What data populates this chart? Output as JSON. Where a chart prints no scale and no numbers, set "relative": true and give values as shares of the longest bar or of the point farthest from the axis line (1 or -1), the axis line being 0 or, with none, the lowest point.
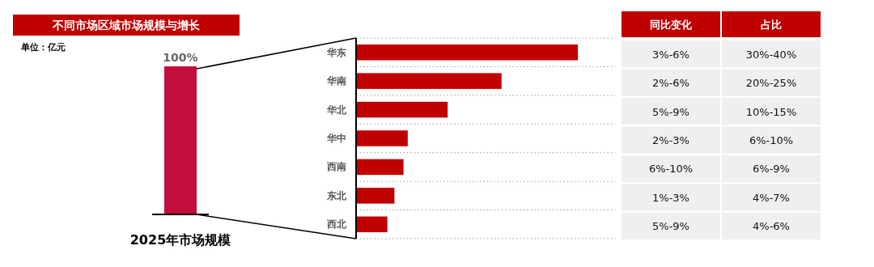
{
  "chart_data": [
    {
      "type": "bar",
      "title": "不同市场区域市场规模与增长",
      "annotations": [
        "单位：亿元"
      ],
      "categories": [
        "2025年市场规模"
      ],
      "values": [
        100
      ],
      "value_labels": [
        "100%"
      ],
      "color": "#c20e3d"
    },
    {
      "type": "bar",
      "orientation": "horizontal",
      "relative": true,
      "grid": "y",
      "categories": [
        "华东",
        "华南",
        "华北",
        "华中",
        "西南",
        "东北",
        "西北"
      ],
      "values": [
        1,
        0.656,
        0.413,
        0.233,
        0.214,
        0.173,
        0.141
      ],
      "color": "#c00000"
    },
    {
      "type": "other",
      "categories": [
        "同比变化",
        "占比"
      ],
      "cell_labels": [
        [
          "3%-6%",
          "30%-40%"
        ],
        [
          "2%-6%",
          "20%-25%"
        ],
        [
          "5%-9%",
          "10%-15%"
        ],
        [
          "2%-3%",
          "6%-10%"
        ],
        [
          "6%-10%",
          "6%-9%"
        ],
        [
          "1%-3%",
          "4%-7%"
        ],
        [
          "5%-9%",
          "4%-6%"
        ]
      ]
    }
  ]
}
